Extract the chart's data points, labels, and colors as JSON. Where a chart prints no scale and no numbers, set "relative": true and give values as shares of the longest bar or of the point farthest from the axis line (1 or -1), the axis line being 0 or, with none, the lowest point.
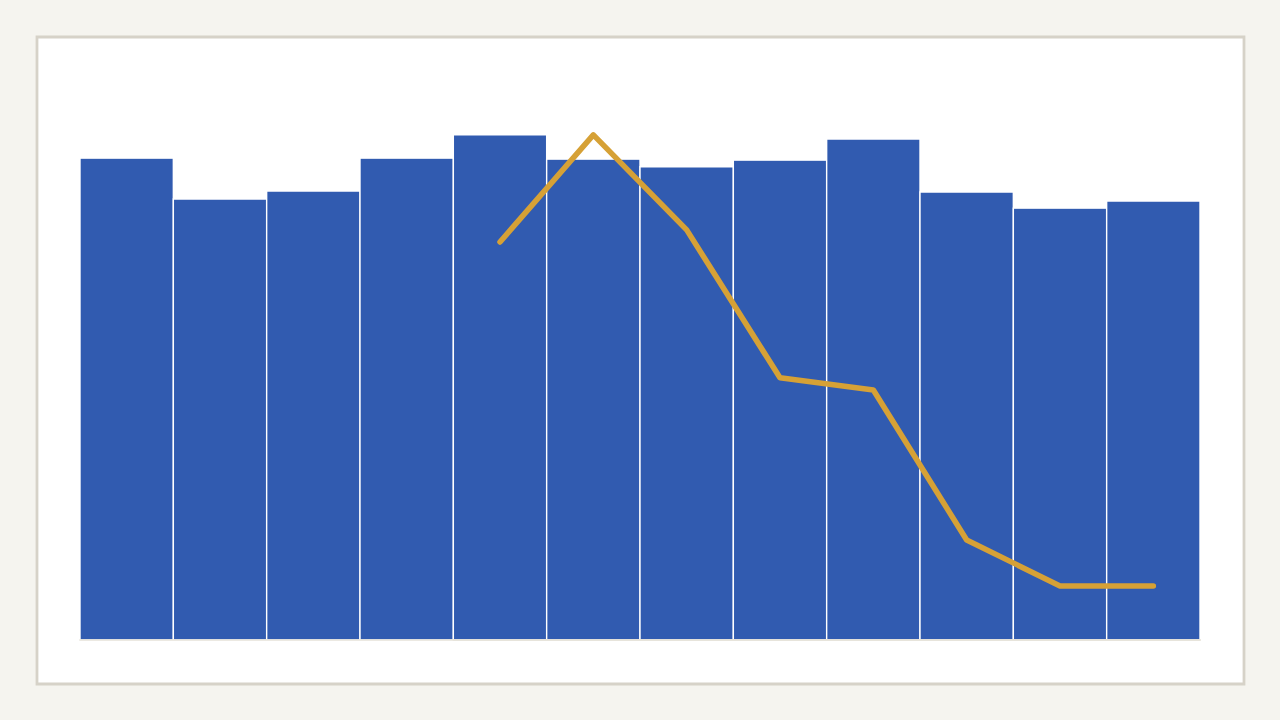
{
  "chart_data": [
    {
      "type": "bar",
      "relative": true,
      "color": "#315bb0",
      "categories": [
        null,
        null,
        null,
        null,
        null,
        null,
        null,
        null,
        null,
        null,
        null,
        null
      ],
      "values": [
        0.954,
        0.873,
        0.889,
        0.954,
        1,
        0.952,
        0.937,
        0.95,
        0.992,
        0.887,
        0.855,
        0.869
      ]
    },
    {
      "type": "line",
      "relative": true,
      "color": "#d6a136",
      "categories": [
        null,
        null,
        null,
        null,
        null,
        null,
        null,
        null
      ],
      "values": [
        0.788,
        1,
        0.812,
        0.519,
        0.495,
        0.198,
        0.107,
        0.107
      ]
    }
  ]
}
